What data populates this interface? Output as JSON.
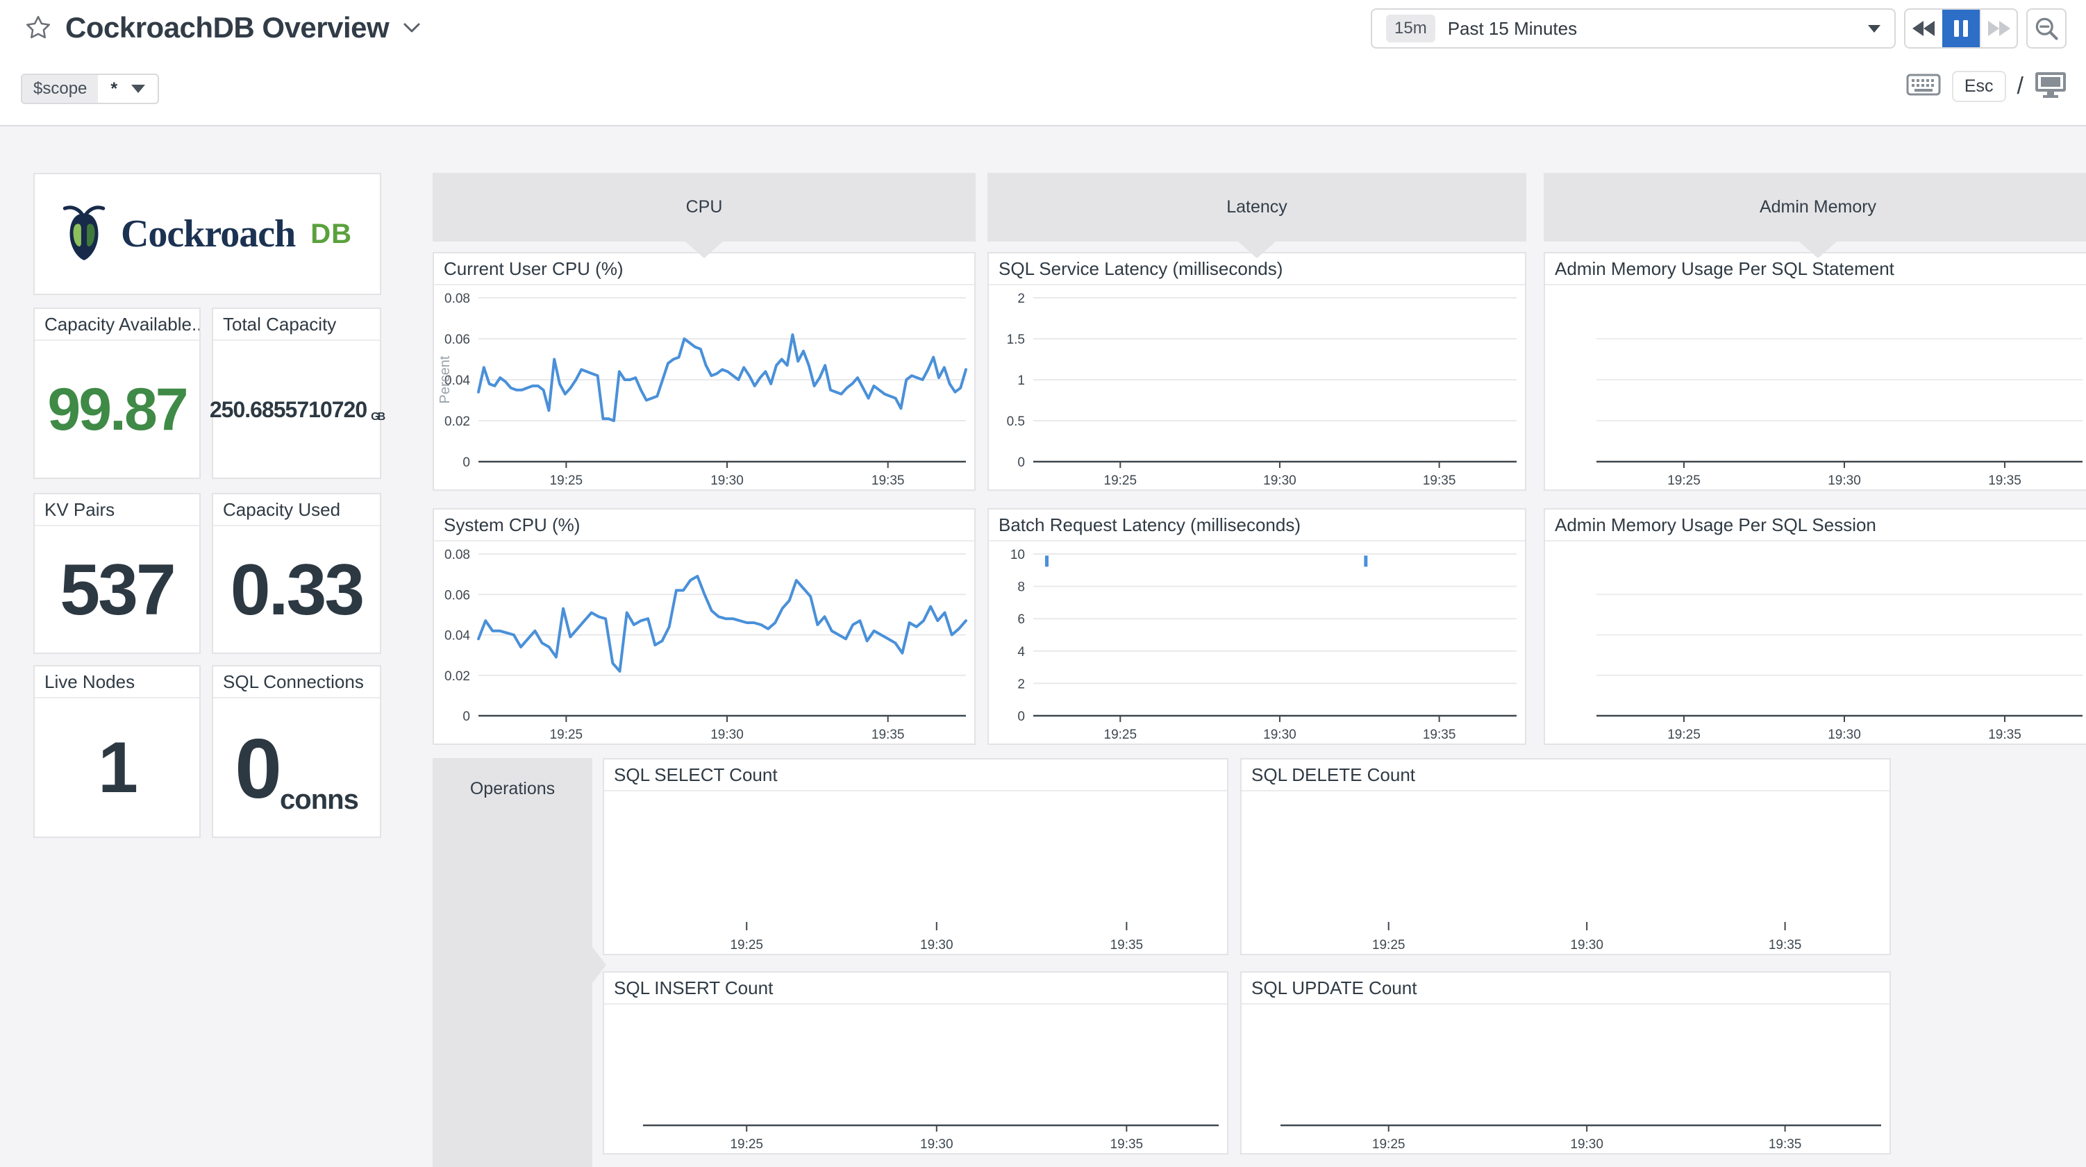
{
  "header": {
    "title": "CockroachDB Overview",
    "time": {
      "badge": "15m",
      "label": "Past 15 Minutes"
    },
    "esc_key": "Esc",
    "slash": "/",
    "scope": {
      "name": "$scope",
      "value": "*"
    }
  },
  "logo": {
    "brand": "Cockroach",
    "suffix": "DB"
  },
  "sections": {
    "cpu": "CPU",
    "latency": "Latency",
    "admin_memory": "Admin Memory",
    "operations": "Operations"
  },
  "stats": {
    "capacity_available": {
      "label": "Capacity Available...",
      "value": "99.87"
    },
    "total_capacity": {
      "label": "Total Capacity",
      "value": "250.6855710720",
      "unit": "GB"
    },
    "kv_pairs": {
      "label": "KV Pairs",
      "value": "537"
    },
    "capacity_used": {
      "label": "Capacity Used",
      "value": "0.33"
    },
    "live_nodes": {
      "label": "Live Nodes",
      "value": "1"
    },
    "sql_connections": {
      "label": "SQL Connections",
      "value": "0",
      "unit": "conns"
    }
  },
  "colors": {
    "line_blue": "#4a90d9",
    "stat_green": "#3f8a46",
    "pause_blue": "#2d6ec6",
    "group_gray": "#e4e4e7",
    "background": "#f4f4f6"
  },
  "chart_data": [
    {
      "id": "current_user_cpu",
      "type": "line",
      "title": "Current User CPU (%)",
      "ylabel": "Percent",
      "ymax": 0.08,
      "yticks": [
        "0",
        "0.02",
        "0.04",
        "0.06",
        "0.08"
      ],
      "xticks": [
        "19:25",
        "19:30",
        "19:35"
      ],
      "line_color": "#4a90d9",
      "values": [
        0.034,
        0.046,
        0.038,
        0.037,
        0.041,
        0.039,
        0.036,
        0.035,
        0.035,
        0.036,
        0.037,
        0.037,
        0.035,
        0.025,
        0.05,
        0.038,
        0.033,
        0.036,
        0.04,
        0.045,
        0.044,
        0.043,
        0.042,
        0.021,
        0.021,
        0.02,
        0.044,
        0.04,
        0.04,
        0.041,
        0.035,
        0.03,
        0.031,
        0.032,
        0.04,
        0.048,
        0.05,
        0.051,
        0.06,
        0.058,
        0.056,
        0.055,
        0.047,
        0.042,
        0.043,
        0.045,
        0.044,
        0.042,
        0.04,
        0.046,
        0.042,
        0.037,
        0.041,
        0.044,
        0.038,
        0.047,
        0.05,
        0.047,
        0.062,
        0.049,
        0.054,
        0.047,
        0.037,
        0.041,
        0.047,
        0.035,
        0.034,
        0.033,
        0.036,
        0.038,
        0.041,
        0.036,
        0.031,
        0.037,
        0.035,
        0.033,
        0.032,
        0.031,
        0.026,
        0.04,
        0.042,
        0.041,
        0.04,
        0.045,
        0.051,
        0.041,
        0.046,
        0.038,
        0.034,
        0.036,
        0.045
      ]
    },
    {
      "id": "system_cpu",
      "type": "line",
      "title": "System CPU (%)",
      "ymax": 0.08,
      "yticks": [
        "0",
        "0.02",
        "0.04",
        "0.06",
        "0.08"
      ],
      "xticks": [
        "19:25",
        "19:30",
        "19:35"
      ],
      "line_color": "#4a90d9",
      "values": [
        0.038,
        0.047,
        0.042,
        0.042,
        0.041,
        0.04,
        0.034,
        0.038,
        0.042,
        0.036,
        0.034,
        0.029,
        0.053,
        0.039,
        0.043,
        0.047,
        0.051,
        0.049,
        0.048,
        0.026,
        0.022,
        0.051,
        0.045,
        0.047,
        0.048,
        0.035,
        0.037,
        0.044,
        0.062,
        0.062,
        0.067,
        0.069,
        0.06,
        0.052,
        0.049,
        0.048,
        0.048,
        0.047,
        0.046,
        0.046,
        0.045,
        0.043,
        0.046,
        0.053,
        0.057,
        0.067,
        0.063,
        0.059,
        0.045,
        0.049,
        0.042,
        0.04,
        0.038,
        0.045,
        0.047,
        0.037,
        0.042,
        0.04,
        0.038,
        0.036,
        0.031,
        0.046,
        0.044,
        0.047,
        0.054,
        0.047,
        0.051,
        0.04,
        0.043,
        0.047
      ]
    },
    {
      "id": "sql_service_latency",
      "type": "line",
      "title": "SQL Service Latency (milliseconds)",
      "ymax": 2,
      "yticks": [
        "0",
        "0.5",
        "1",
        "1.5",
        "2"
      ],
      "xticks": [
        "19:25",
        "19:30",
        "19:35"
      ],
      "values": []
    },
    {
      "id": "batch_request_latency",
      "type": "line",
      "title": "Batch Request Latency (milliseconds)",
      "ymax": 10,
      "yticks": [
        "0",
        "2",
        "4",
        "6",
        "8",
        "10"
      ],
      "xticks": [
        "19:25",
        "19:30",
        "19:35"
      ],
      "line_color": "#4a90d9",
      "values": [],
      "marks": [
        {
          "x": 0.028,
          "value": 9.9
        },
        {
          "x": 0.688,
          "value": 9.9
        }
      ]
    },
    {
      "id": "admin_mem_stmt",
      "type": "line",
      "title": "Admin Memory Usage Per SQL Statement",
      "yticks": [],
      "xticks": [
        "19:25",
        "19:30",
        "19:35"
      ],
      "values": []
    },
    {
      "id": "admin_mem_sess",
      "type": "line",
      "title": "Admin Memory Usage Per SQL Session",
      "yticks": [],
      "xticks": [
        "19:25",
        "19:30",
        "19:35"
      ],
      "values": []
    },
    {
      "id": "sql_select",
      "type": "line",
      "title": "SQL SELECT Count",
      "yticks": [],
      "xticks": [
        "19:25",
        "19:30",
        "19:35"
      ],
      "values": []
    },
    {
      "id": "sql_delete",
      "type": "line",
      "title": "SQL DELETE Count",
      "yticks": [],
      "xticks": [
        "19:25",
        "19:30",
        "19:35"
      ],
      "values": []
    },
    {
      "id": "sql_insert",
      "type": "line",
      "title": "SQL INSERT Count",
      "yticks": [],
      "xticks": [
        "19:25",
        "19:30",
        "19:35"
      ],
      "values": []
    },
    {
      "id": "sql_update",
      "type": "line",
      "title": "SQL UPDATE Count",
      "yticks": [],
      "xticks": [
        "19:25",
        "19:30",
        "19:35"
      ],
      "values": []
    }
  ]
}
